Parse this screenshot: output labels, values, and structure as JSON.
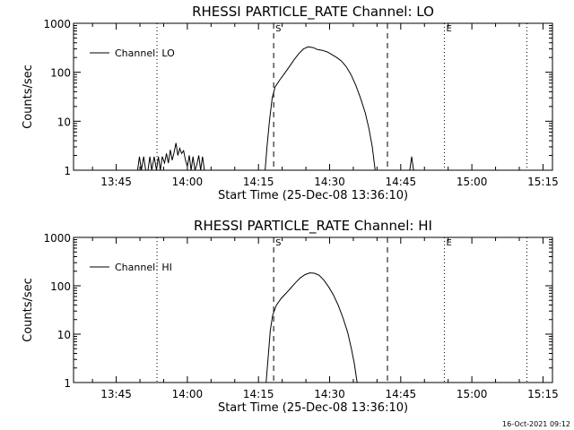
{
  "footer_timestamp": "16-Oct-2021 09:12",
  "chart_data": [
    {
      "type": "line",
      "title": "RHESSI PARTICLE_RATE Channel: LO",
      "xlabel": "Start Time (25-Dec-08 13:36:10)",
      "ylabel": "Counts/sec",
      "yscale": "log",
      "ylim": [
        1,
        1000
      ],
      "xlim_minutes": [
        0,
        101
      ],
      "x_ticks": [
        {
          "t": 9,
          "label": "13:45"
        },
        {
          "t": 24,
          "label": "14:00"
        },
        {
          "t": 39,
          "label": "14:15"
        },
        {
          "t": 54,
          "label": "14:30"
        },
        {
          "t": 69,
          "label": "14:45"
        },
        {
          "t": 84,
          "label": "15:00"
        },
        {
          "t": 99,
          "label": "15:15"
        }
      ],
      "y_ticks": [
        {
          "v": 1,
          "label": "1"
        },
        {
          "v": 10,
          "label": "10"
        },
        {
          "v": 100,
          "label": "100"
        },
        {
          "v": 1000,
          "label": "1000"
        }
      ],
      "legend": "Channel: LO",
      "markers": [
        {
          "t": 42.2,
          "style": "dashed",
          "label": "S"
        },
        {
          "t": 66.2,
          "style": "dashed",
          "label": ""
        },
        {
          "t": 17.6,
          "style": "dotted",
          "label": ""
        },
        {
          "t": 78.2,
          "style": "dotted",
          "label": "E"
        },
        {
          "t": 95.6,
          "style": "dotted",
          "label": ""
        }
      ],
      "series": [
        {
          "name": "Channel: LO",
          "segments": [
            [
              [
                13.5,
                1
              ],
              [
                13.9,
                1.9
              ],
              [
                14.3,
                1
              ],
              [
                14.8,
                1.9
              ],
              [
                15.2,
                1
              ],
              [
                15.7,
                1
              ],
              [
                16.1,
                1.9
              ],
              [
                16.5,
                1
              ],
              [
                17,
                1.9
              ],
              [
                17.5,
                1
              ],
              [
                17.9,
                1.9
              ],
              [
                18.3,
                1
              ],
              [
                18.7,
                1.9
              ],
              [
                19.2,
                1.4
              ],
              [
                19.6,
                2.2
              ],
              [
                20,
                1.4
              ],
              [
                20.4,
                2.6
              ],
              [
                20.8,
                1.6
              ],
              [
                21.2,
                2.3
              ],
              [
                21.6,
                3.6
              ],
              [
                22,
                2
              ],
              [
                22.4,
                2.8
              ],
              [
                22.8,
                2.2
              ],
              [
                23.2,
                2.5
              ],
              [
                23.6,
                1.6
              ],
              [
                24,
                1.2
              ],
              [
                24.4,
                2
              ],
              [
                24.8,
                1
              ],
              [
                25.2,
                1.9
              ],
              [
                25.6,
                1
              ],
              [
                26,
                1.3
              ],
              [
                26.4,
                2
              ],
              [
                26.8,
                1
              ],
              [
                27.2,
                1.9
              ],
              [
                27.6,
                1
              ]
            ],
            [
              [
                40.4,
                1
              ],
              [
                40.8,
                3
              ],
              [
                41.3,
                10
              ],
              [
                41.9,
                30
              ],
              [
                42.5,
                50
              ],
              [
                43.5,
                70
              ],
              [
                44.5,
                95
              ],
              [
                45.5,
                130
              ],
              [
                46.5,
                180
              ],
              [
                47.5,
                240
              ],
              [
                48.5,
                300
              ],
              [
                49.5,
                330
              ],
              [
                50.5,
                320
              ],
              [
                51.5,
                290
              ],
              [
                52.5,
                280
              ],
              [
                53.5,
                260
              ],
              [
                54.5,
                230
              ],
              [
                55.5,
                200
              ],
              [
                56.5,
                170
              ],
              [
                57.5,
                130
              ],
              [
                58.5,
                90
              ],
              [
                59.5,
                55
              ],
              [
                60.5,
                30
              ],
              [
                61.5,
                15
              ],
              [
                62.3,
                7
              ],
              [
                63,
                3
              ],
              [
                63.6,
                1
              ]
            ],
            [
              [
                70.9,
                1
              ],
              [
                71.3,
                1.9
              ],
              [
                71.7,
                1
              ]
            ]
          ]
        }
      ]
    },
    {
      "type": "line",
      "title": "RHESSI PARTICLE_RATE Channel: HI",
      "xlabel": "Start Time (25-Dec-08 13:36:10)",
      "ylabel": "Counts/sec",
      "yscale": "log",
      "ylim": [
        1,
        1000
      ],
      "xlim_minutes": [
        0,
        101
      ],
      "x_ticks": [
        {
          "t": 9,
          "label": "13:45"
        },
        {
          "t": 24,
          "label": "14:00"
        },
        {
          "t": 39,
          "label": "14:15"
        },
        {
          "t": 54,
          "label": "14:30"
        },
        {
          "t": 69,
          "label": "14:45"
        },
        {
          "t": 84,
          "label": "15:00"
        },
        {
          "t": 99,
          "label": "15:15"
        }
      ],
      "y_ticks": [
        {
          "v": 1,
          "label": "1"
        },
        {
          "v": 10,
          "label": "10"
        },
        {
          "v": 100,
          "label": "100"
        },
        {
          "v": 1000,
          "label": "1000"
        }
      ],
      "legend": "Channel: HI",
      "markers": [
        {
          "t": 42.2,
          "style": "dashed",
          "label": "S"
        },
        {
          "t": 66.2,
          "style": "dashed",
          "label": ""
        },
        {
          "t": 17.6,
          "style": "dotted",
          "label": ""
        },
        {
          "t": 78.2,
          "style": "dotted",
          "label": "E"
        },
        {
          "t": 95.6,
          "style": "dotted",
          "label": ""
        }
      ],
      "series": [
        {
          "name": "Channel: HI",
          "segments": [
            [
              [
                40.6,
                1
              ],
              [
                41,
                3
              ],
              [
                41.5,
                12
              ],
              [
                42,
                25
              ],
              [
                42.8,
                40
              ],
              [
                43.8,
                55
              ],
              [
                44.8,
                70
              ],
              [
                45.8,
                90
              ],
              [
                46.8,
                115
              ],
              [
                47.8,
                145
              ],
              [
                48.8,
                170
              ],
              [
                49.8,
                185
              ],
              [
                50.8,
                182
              ],
              [
                51.8,
                165
              ],
              [
                52.8,
                130
              ],
              [
                53.8,
                95
              ],
              [
                54.8,
                65
              ],
              [
                55.8,
                40
              ],
              [
                56.8,
                22
              ],
              [
                57.8,
                11
              ],
              [
                58.6,
                5
              ],
              [
                59.2,
                2.5
              ],
              [
                59.8,
                1
              ]
            ]
          ]
        }
      ]
    }
  ]
}
